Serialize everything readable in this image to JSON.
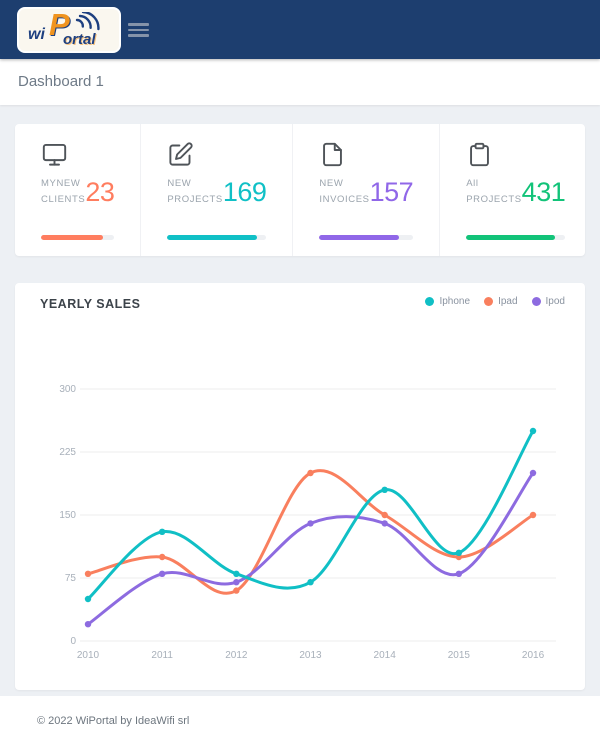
{
  "navbar": {
    "logo": {
      "prefix": "wi",
      "p": "P",
      "suffix": "ortal"
    },
    "colors": {
      "bar": "#1d3e6f",
      "logo_navy": "#1e4080",
      "logo_orange": "#f0941f"
    }
  },
  "breadcrumb": {
    "title": "Dashboard 1"
  },
  "stats": {
    "cards": [
      {
        "icon": "monitor-icon",
        "label_line1": "MYNEW",
        "label_line2": "CLIENTS",
        "value": "23",
        "color": "#ff7d5f",
        "progress": 85
      },
      {
        "icon": "edit-icon",
        "label_line1": "NEW",
        "label_line2": "PROJECTS",
        "value": "169",
        "color": "#10c0c6",
        "progress": 90
      },
      {
        "icon": "file-icon",
        "label_line1": "NEW",
        "label_line2": "INVOICES",
        "value": "157",
        "color": "#9067e8",
        "progress": 85
      },
      {
        "icon": "clipboard-icon",
        "label_line1": "All",
        "label_line2": "PROJECTS",
        "value": "431",
        "color": "#12c379",
        "progress": 90
      }
    ]
  },
  "chart_data": {
    "type": "line",
    "title": "YEARLY SALES",
    "categories": [
      "2010",
      "2011",
      "2012",
      "2013",
      "2014",
      "2015",
      "2016"
    ],
    "series": [
      {
        "name": "Iphone",
        "color": "#10bfc5",
        "values": [
          50,
          130,
          80,
          70,
          180,
          105,
          250
        ]
      },
      {
        "name": "Ipad",
        "color": "#f97f5e",
        "values": [
          80,
          100,
          60,
          200,
          150,
          100,
          150
        ]
      },
      {
        "name": "Ipod",
        "color": "#8d6be0",
        "values": [
          20,
          80,
          70,
          140,
          140,
          80,
          200
        ]
      }
    ],
    "yticks": [
      0,
      75,
      150,
      225,
      300
    ],
    "ylim": [
      0,
      300
    ],
    "grid": "horizontal",
    "legend_position": "top-right"
  },
  "footer": {
    "copyright": "© 2022 WiPortal by IdeaWifi srl"
  }
}
